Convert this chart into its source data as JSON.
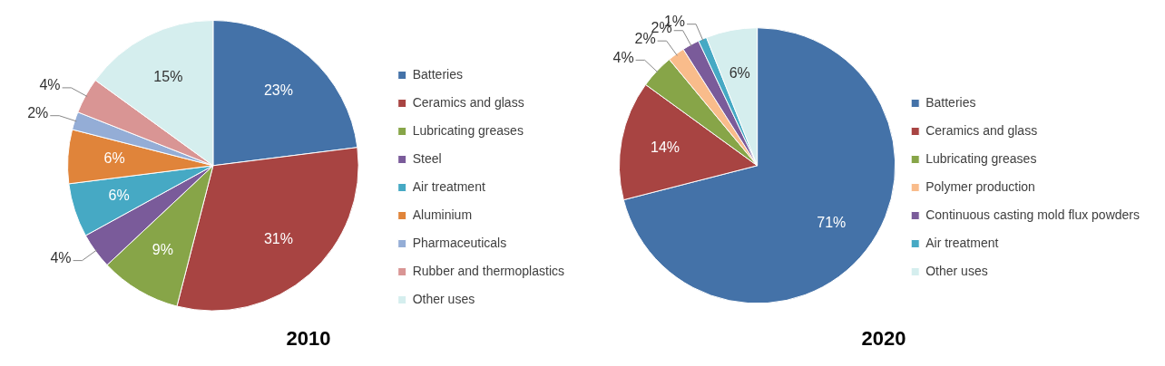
{
  "chart_data": [
    {
      "type": "pie",
      "title": "2010",
      "categories": [
        "Batteries",
        "Ceramics and glass",
        "Lubricating greases",
        "Steel",
        "Air treatment",
        "Aluminium",
        "Pharmaceuticals",
        "Rubber and thermoplastics",
        "Other uses"
      ],
      "values": [
        23,
        31,
        9,
        4,
        6,
        6,
        2,
        4,
        15
      ],
      "value_labels": [
        "23%",
        "31%",
        "9%",
        "4%",
        "6%",
        "6%",
        "2%",
        "4%",
        "15%"
      ],
      "colors": [
        "#4472a8",
        "#a84442",
        "#87a548",
        "#7a5b9a",
        "#46a9c4",
        "#e0843a",
        "#94add6",
        "#d99594",
        "#d5eeee"
      ],
      "legend": "right"
    },
    {
      "type": "pie",
      "title": "2020",
      "categories": [
        "Batteries",
        "Ceramics and glass",
        "Lubricating greases",
        "Polymer production",
        "Continuous casting mold flux powders",
        "Air treatment",
        "Other uses"
      ],
      "values": [
        71,
        14,
        4,
        2,
        2,
        1,
        6
      ],
      "value_labels": [
        "71%",
        "14%",
        "4%",
        "2%",
        "2%",
        "1%",
        "6%"
      ],
      "colors": [
        "#4472a8",
        "#a84442",
        "#87a548",
        "#f9bc8b",
        "#7a5b9a",
        "#46a9c4",
        "#d5eeee"
      ],
      "legend": "right"
    }
  ]
}
